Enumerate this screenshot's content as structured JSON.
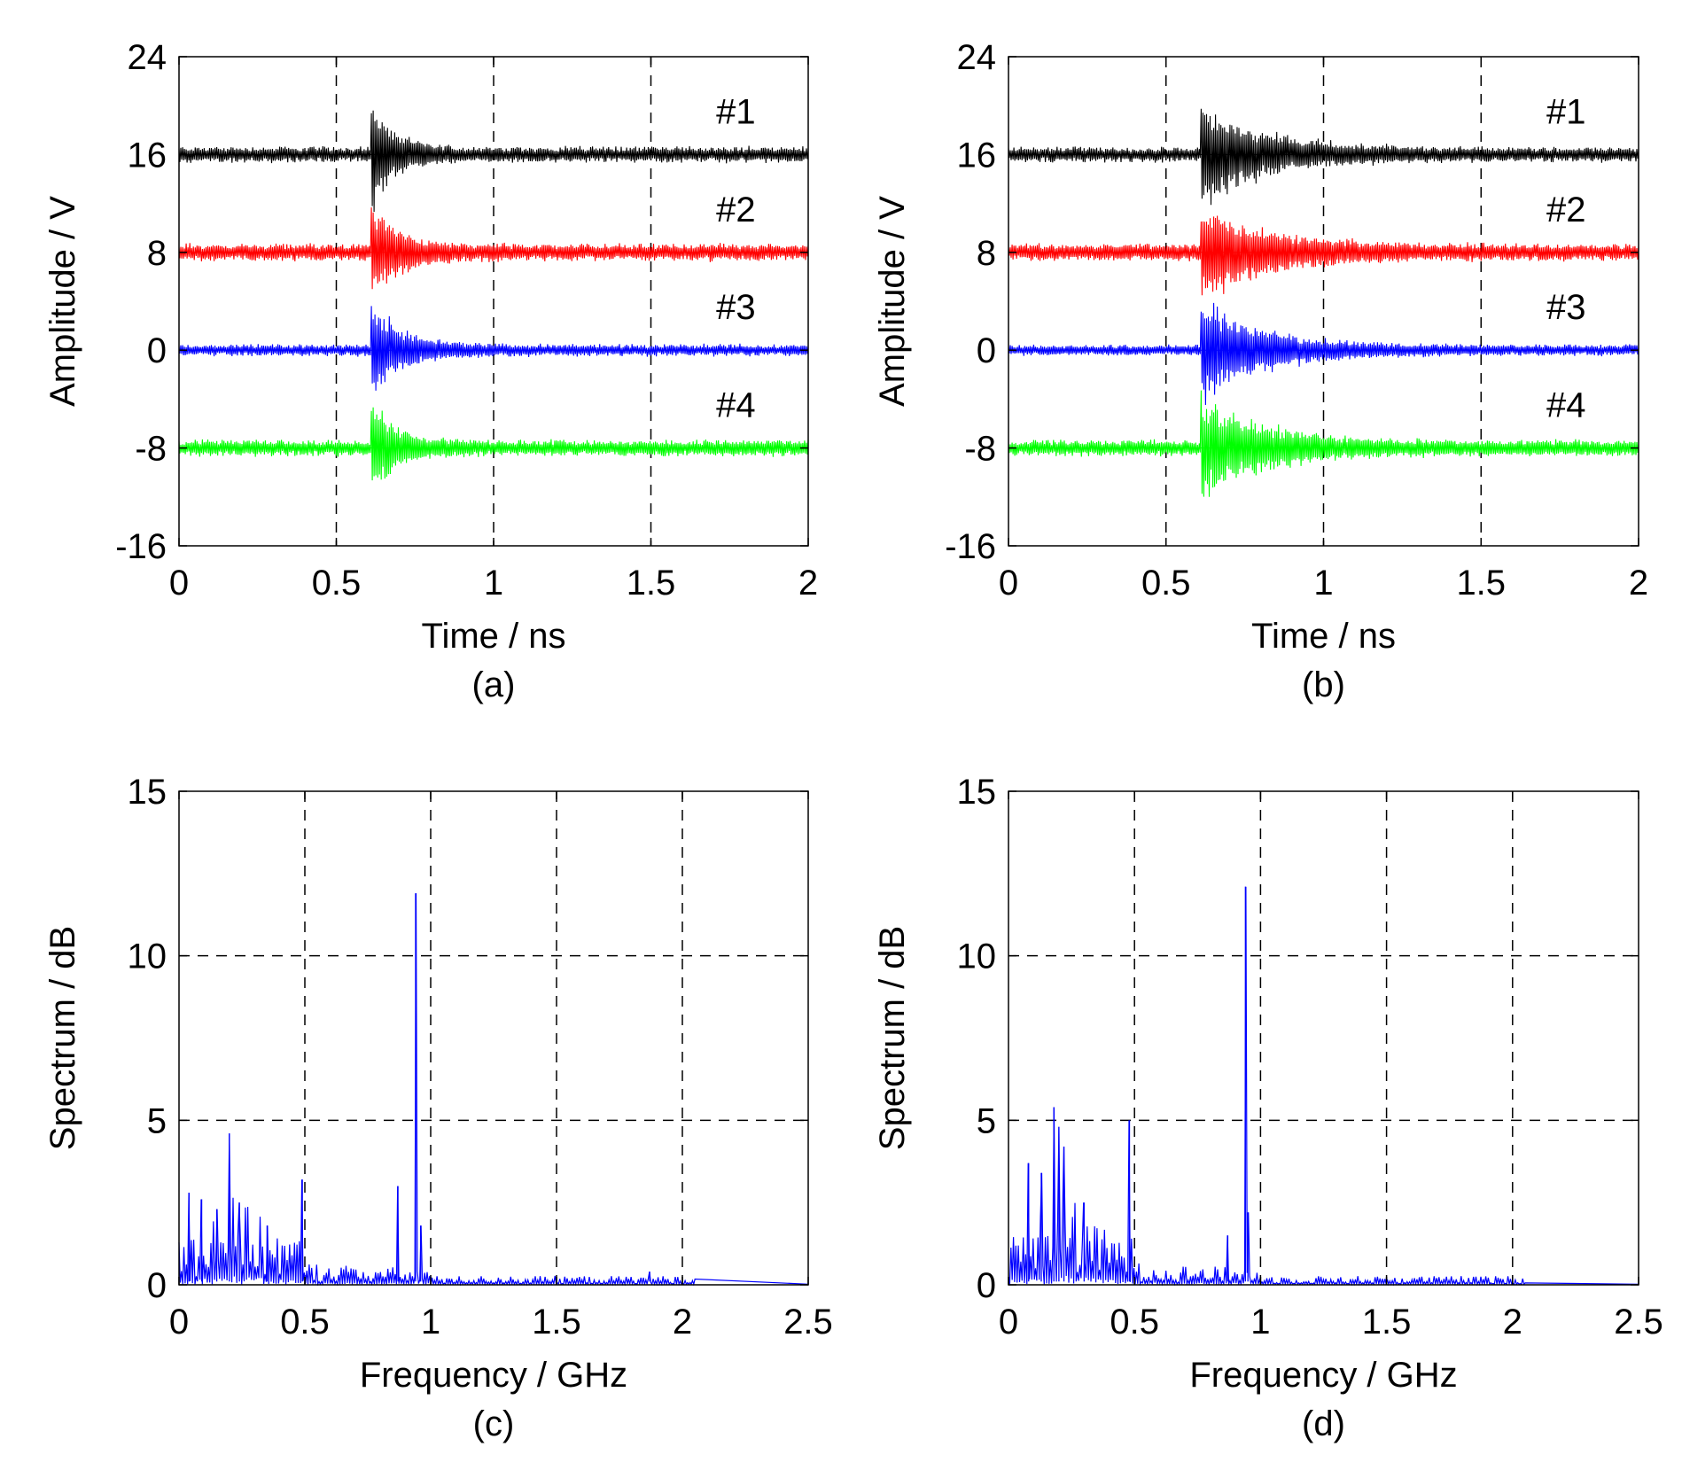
{
  "chart_data": [
    {
      "id": "a",
      "type": "line",
      "caption": "(a)",
      "xlabel": "Time / ns",
      "ylabel": "Amplitude / V",
      "xlim": [
        0,
        2
      ],
      "ylim": [
        -16,
        24
      ],
      "xticks": [
        "0",
        "0.5",
        "1",
        "1.5",
        "2"
      ],
      "yticks": [
        "-16",
        "-8",
        "0",
        "8",
        "16",
        "24"
      ],
      "grid": "vertical dashed",
      "series": [
        {
          "name": "#1",
          "offset": 16,
          "color": "#000000",
          "onset": 0.61,
          "peak_amplitude": 5.0,
          "decay_ns": 0.07,
          "noise": 0.75
        },
        {
          "name": "#2",
          "offset": 8,
          "color": "#ff0000",
          "onset": 0.61,
          "peak_amplitude": 4.5,
          "decay_ns": 0.08,
          "noise": 0.8
        },
        {
          "name": "#3",
          "offset": 0,
          "color": "#0000ff",
          "onset": 0.61,
          "peak_amplitude": 4.5,
          "decay_ns": 0.1,
          "noise": 0.55
        },
        {
          "name": "#4",
          "offset": -8,
          "color": "#00ff00",
          "onset": 0.61,
          "peak_amplitude": 4.0,
          "decay_ns": 0.08,
          "noise": 0.75
        }
      ]
    },
    {
      "id": "b",
      "type": "line",
      "caption": "(b)",
      "xlabel": "Time / ns",
      "ylabel": "Amplitude / V",
      "xlim": [
        0,
        2
      ],
      "ylim": [
        -16,
        24
      ],
      "xticks": [
        "0",
        "0.5",
        "1",
        "1.5",
        "2"
      ],
      "yticks": [
        "-16",
        "-8",
        "0",
        "8",
        "16",
        "24"
      ],
      "grid": "vertical dashed",
      "series": [
        {
          "name": "#1",
          "offset": 16,
          "color": "#000000",
          "onset": 0.61,
          "peak_amplitude": 4.5,
          "decay_ns": 0.2,
          "noise": 0.7
        },
        {
          "name": "#2",
          "offset": 8,
          "color": "#ff0000",
          "onset": 0.61,
          "peak_amplitude": 4.5,
          "decay_ns": 0.2,
          "noise": 0.8
        },
        {
          "name": "#3",
          "offset": 0,
          "color": "#0000ff",
          "onset": 0.61,
          "peak_amplitude": 4.5,
          "decay_ns": 0.2,
          "noise": 0.5
        },
        {
          "name": "#4",
          "offset": -8,
          "color": "#00ff00",
          "onset": 0.61,
          "peak_amplitude": 4.5,
          "decay_ns": 0.2,
          "noise": 0.75
        }
      ]
    },
    {
      "id": "c",
      "type": "line",
      "caption": "(c)",
      "xlabel": "Frequency / GHz",
      "ylabel": "Spectrum / dB",
      "xlim": [
        0,
        2.5
      ],
      "ylim": [
        0,
        15
      ],
      "xticks": [
        "0",
        "0.5",
        "1",
        "1.5",
        "2",
        "2.5"
      ],
      "yticks": [
        "0",
        "5",
        "10",
        "15"
      ],
      "grid": "dashed",
      "color": "#0000ff",
      "data_end": 2.05,
      "peaks": [
        {
          "x": 0.04,
          "y": 2.8
        },
        {
          "x": 0.09,
          "y": 2.6
        },
        {
          "x": 0.15,
          "y": 2.3
        },
        {
          "x": 0.2,
          "y": 4.6
        },
        {
          "x": 0.24,
          "y": 2.5
        },
        {
          "x": 0.35,
          "y": 1.8
        },
        {
          "x": 0.49,
          "y": 3.2
        },
        {
          "x": 0.87,
          "y": 3.0
        },
        {
          "x": 0.94,
          "y": 11.9
        },
        {
          "x": 0.96,
          "y": 1.8
        },
        {
          "x": 1.87,
          "y": 0.4
        }
      ]
    },
    {
      "id": "d",
      "type": "line",
      "caption": "(d)",
      "xlabel": "Frequency / GHz",
      "ylabel": "Spectrum / dB",
      "xlim": [
        0,
        2.5
      ],
      "ylim": [
        0,
        15
      ],
      "xticks": [
        "0",
        "0.5",
        "1",
        "1.5",
        "2",
        "2.5"
      ],
      "yticks": [
        "0",
        "5",
        "10",
        "15"
      ],
      "grid": "dashed",
      "color": "#0000ff",
      "data_end": 2.05,
      "peaks": [
        {
          "x": 0.08,
          "y": 3.7
        },
        {
          "x": 0.13,
          "y": 3.4
        },
        {
          "x": 0.18,
          "y": 5.4
        },
        {
          "x": 0.2,
          "y": 4.8
        },
        {
          "x": 0.22,
          "y": 4.2
        },
        {
          "x": 0.3,
          "y": 2.5
        },
        {
          "x": 0.48,
          "y": 5.0
        },
        {
          "x": 0.87,
          "y": 1.5
        },
        {
          "x": 0.94,
          "y": 12.1
        },
        {
          "x": 0.95,
          "y": 2.2
        }
      ]
    }
  ]
}
